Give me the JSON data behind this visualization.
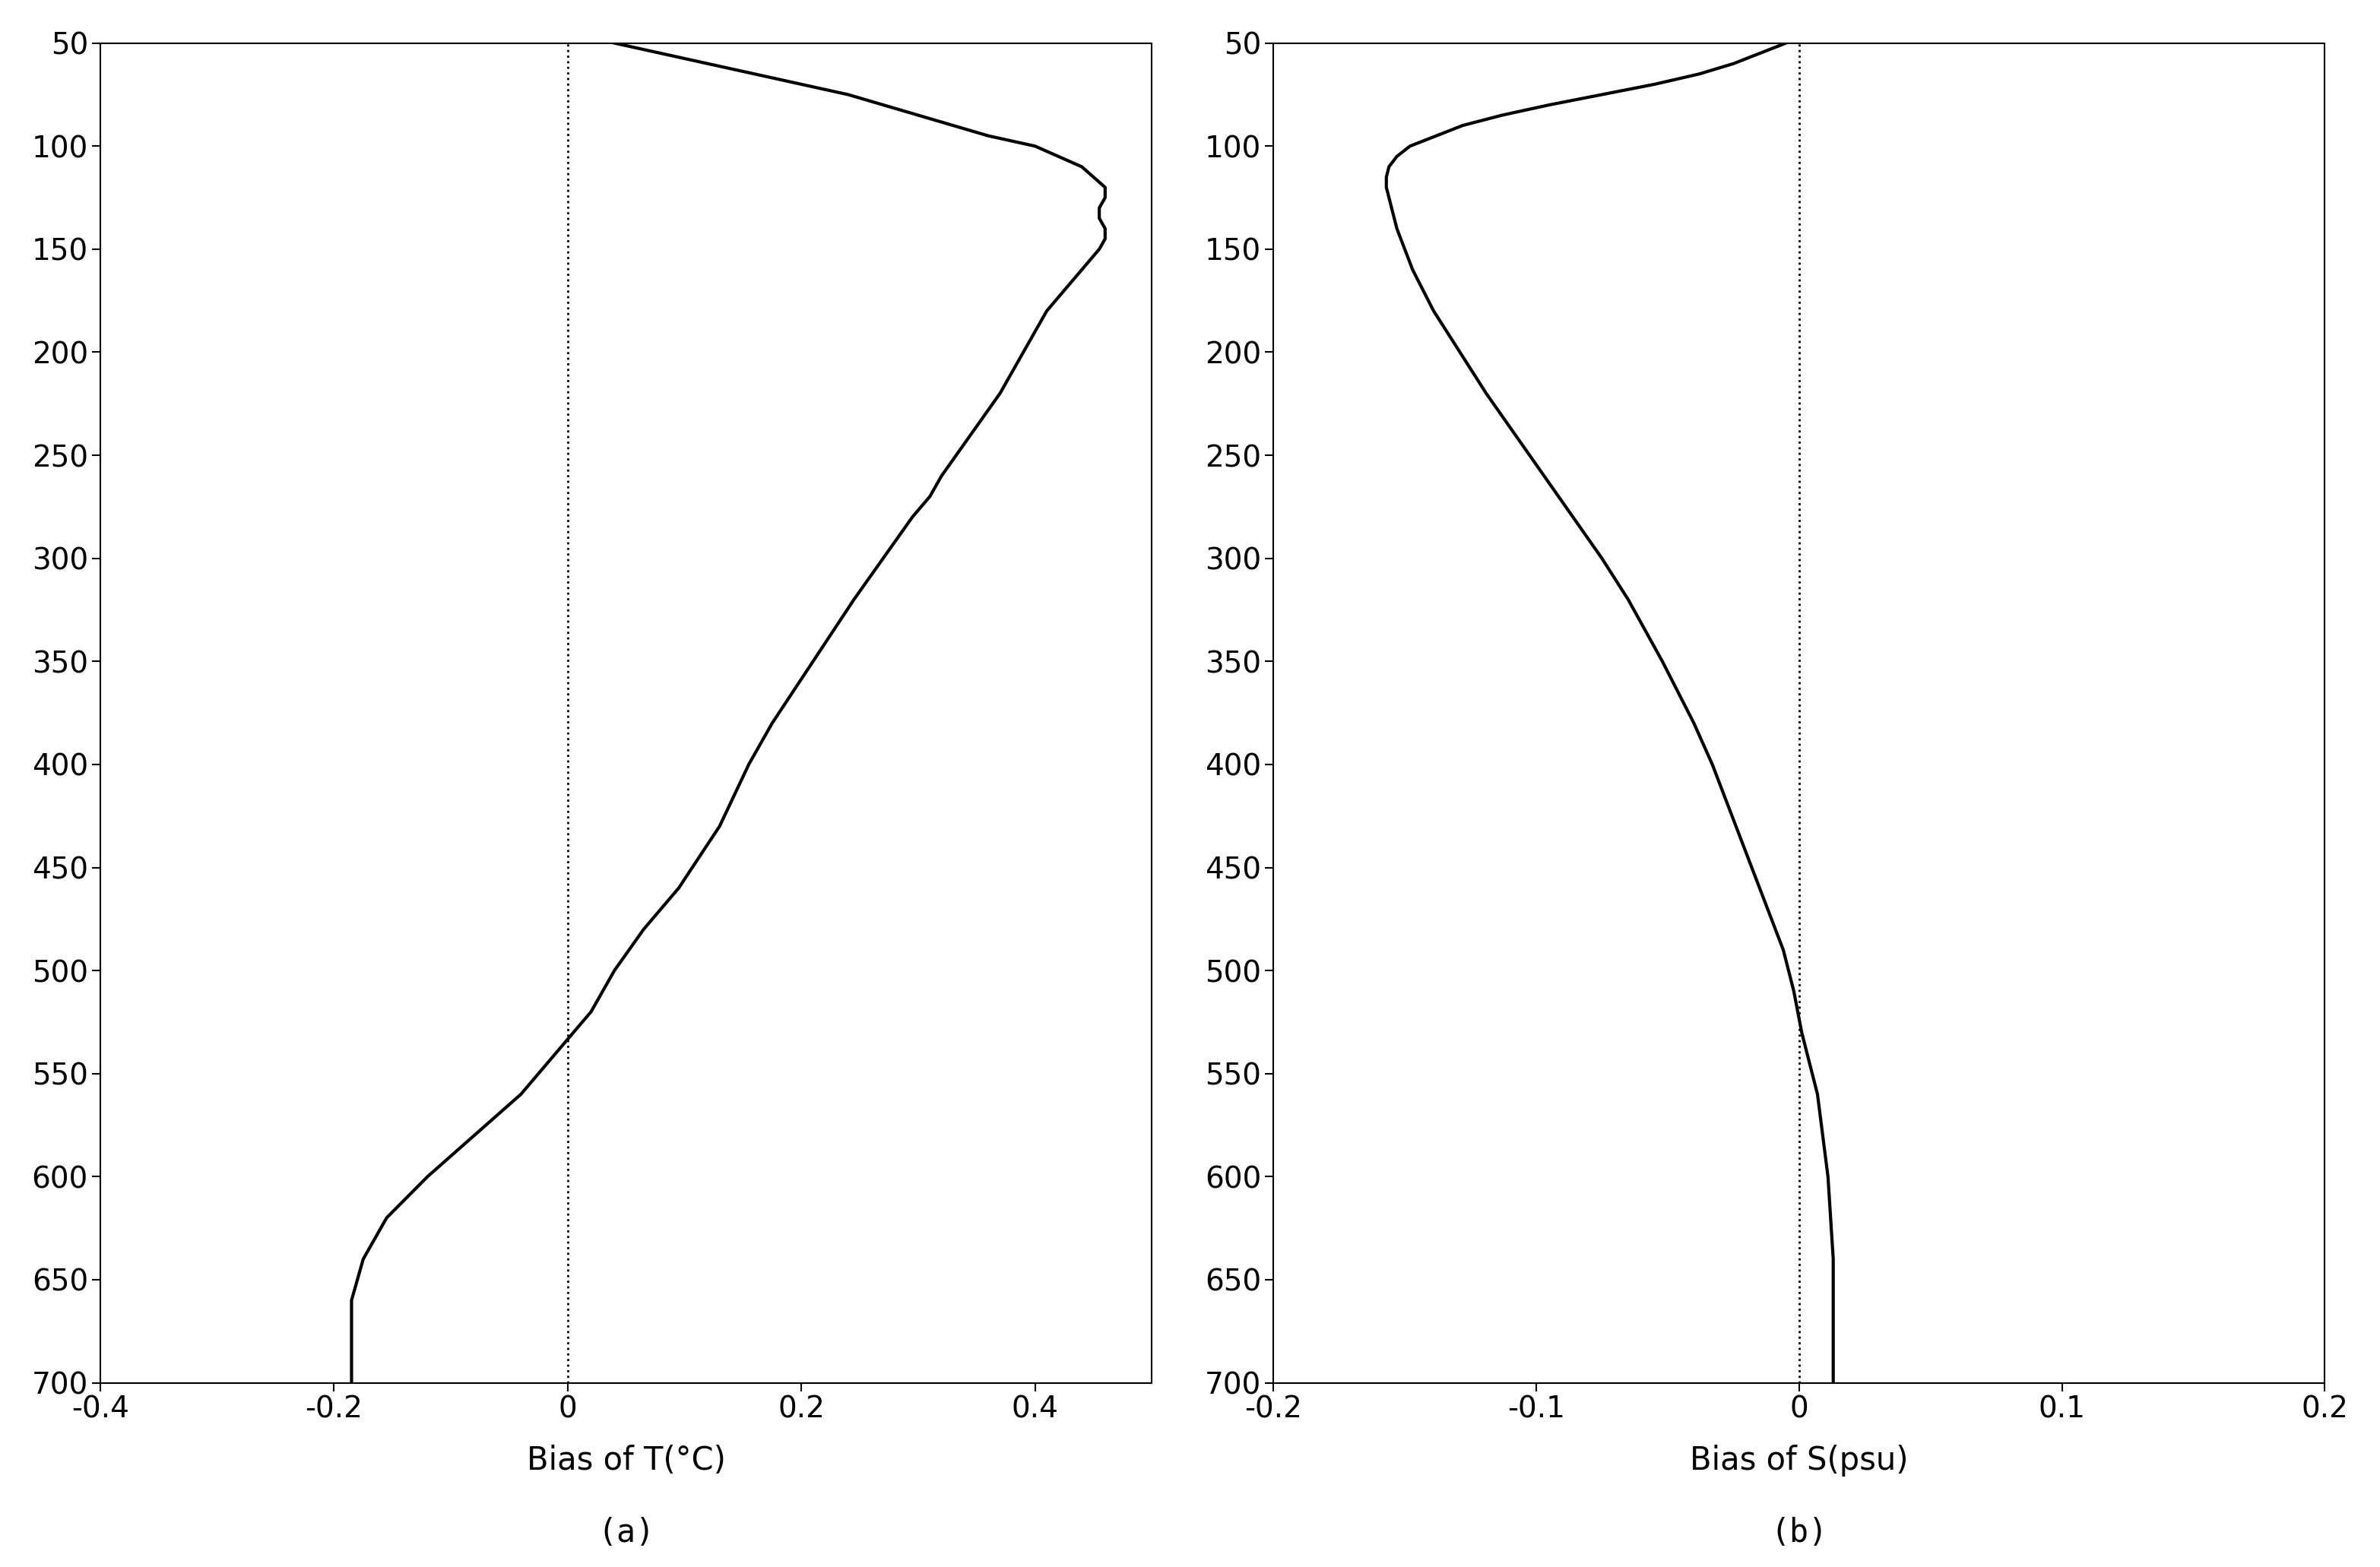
{
  "panel_a": {
    "xlabel": "Bias of T(°C)",
    "sublabel": "(a)",
    "xlim": [
      -0.4,
      0.5
    ],
    "xticks": [
      -0.4,
      -0.2,
      0.0,
      0.2,
      0.4
    ],
    "ylim": [
      700,
      50
    ],
    "yticks": [
      50,
      100,
      150,
      200,
      250,
      300,
      350,
      400,
      450,
      500,
      550,
      600,
      650,
      700
    ],
    "depth": [
      50,
      55,
      60,
      65,
      70,
      75,
      80,
      85,
      90,
      95,
      100,
      110,
      120,
      125,
      130,
      135,
      140,
      145,
      150,
      160,
      170,
      180,
      190,
      200,
      220,
      240,
      260,
      270,
      280,
      300,
      320,
      350,
      380,
      400,
      430,
      460,
      480,
      500,
      520,
      540,
      560,
      575,
      590,
      600,
      620,
      640,
      660,
      680,
      700
    ],
    "bias_T": [
      0.04,
      0.08,
      0.12,
      0.16,
      0.2,
      0.24,
      0.27,
      0.3,
      0.33,
      0.36,
      0.4,
      0.44,
      0.46,
      0.46,
      0.455,
      0.455,
      0.46,
      0.46,
      0.455,
      0.44,
      0.425,
      0.41,
      0.4,
      0.39,
      0.37,
      0.345,
      0.32,
      0.31,
      0.295,
      0.27,
      0.245,
      0.21,
      0.175,
      0.155,
      0.13,
      0.095,
      0.065,
      0.04,
      0.02,
      -0.01,
      -0.04,
      -0.07,
      -0.1,
      -0.12,
      -0.155,
      -0.175,
      -0.185,
      -0.185,
      -0.185
    ]
  },
  "panel_b": {
    "xlabel": "Bias of S(psu)",
    "sublabel": "(b)",
    "xlim": [
      -0.2,
      0.2
    ],
    "xticks": [
      -0.2,
      -0.1,
      0.0,
      0.1,
      0.2
    ],
    "ylim": [
      700,
      50
    ],
    "yticks": [
      50,
      100,
      150,
      200,
      250,
      300,
      350,
      400,
      450,
      500,
      550,
      600,
      650,
      700
    ],
    "depth": [
      50,
      55,
      60,
      65,
      70,
      75,
      80,
      85,
      90,
      95,
      100,
      105,
      110,
      115,
      120,
      130,
      140,
      150,
      160,
      170,
      180,
      190,
      200,
      220,
      240,
      260,
      280,
      300,
      320,
      350,
      380,
      400,
      430,
      460,
      490,
      510,
      530,
      550,
      560,
      570,
      580,
      590,
      600,
      620,
      640,
      660,
      680,
      700
    ],
    "bias_S": [
      -0.005,
      -0.015,
      -0.025,
      -0.038,
      -0.055,
      -0.075,
      -0.095,
      -0.113,
      -0.128,
      -0.138,
      -0.148,
      -0.153,
      -0.156,
      -0.157,
      -0.157,
      -0.155,
      -0.153,
      -0.15,
      -0.147,
      -0.143,
      -0.139,
      -0.134,
      -0.129,
      -0.119,
      -0.108,
      -0.097,
      -0.086,
      -0.075,
      -0.065,
      -0.052,
      -0.04,
      -0.033,
      -0.024,
      -0.015,
      -0.006,
      -0.002,
      0.001,
      0.005,
      0.007,
      0.008,
      0.009,
      0.01,
      0.011,
      0.012,
      0.013,
      0.013,
      0.013,
      0.013
    ]
  },
  "line_color": "#000000",
  "line_width": 3.0,
  "dashed_color": "#000000",
  "background_color": "#ffffff",
  "tick_fontsize": 28,
  "label_fontsize": 30,
  "sublabel_fontsize": 30
}
